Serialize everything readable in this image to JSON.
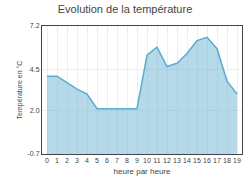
{
  "chart_data": {
    "type": "area",
    "title": "Evolution de la température",
    "x_label": "heure par heure",
    "y_label": "Température en °C",
    "x": [
      0,
      1,
      2,
      3,
      4,
      5,
      6,
      7,
      8,
      9,
      10,
      11,
      12,
      13,
      14,
      15,
      16,
      17,
      18,
      19
    ],
    "values": [
      4.1,
      4.1,
      3.7,
      3.3,
      3.0,
      2.1,
      2.1,
      2.1,
      2.1,
      2.1,
      5.4,
      5.9,
      4.7,
      4.9,
      5.5,
      6.3,
      6.5,
      5.8,
      3.8,
      3.0
    ],
    "color": "#5aabcf",
    "xlim": [
      -0.5,
      19.5
    ],
    "xticks": [
      0,
      1,
      2,
      3,
      4,
      5,
      6,
      7,
      8,
      9,
      10,
      11,
      12,
      13,
      14,
      15,
      16,
      17,
      18,
      19
    ],
    "ylim": [
      -0.7,
      7.2
    ],
    "yticks": [
      -0.7,
      {
        "value": 2.0,
        "label": "2.0"
      },
      4.5,
      7.2
    ],
    "grid": true
  }
}
